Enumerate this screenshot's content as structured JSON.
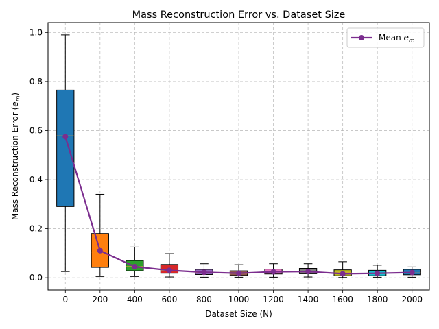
{
  "chart_data": {
    "type": "box",
    "title": "Mass Reconstruction Error vs. Dataset Size",
    "xlabel": "Dataset Size (N)",
    "ylabel": "Mass Reconstruction Error (e_m)",
    "ylim": [
      -0.05,
      1.04
    ],
    "yticks": [
      "0.0",
      "0.2",
      "0.4",
      "0.6",
      "0.8",
      "1.0"
    ],
    "grid": true,
    "legend": {
      "placement": "top-right",
      "entries": [
        {
          "label": "Mean e_m",
          "color": "#7b2d8e"
        }
      ]
    },
    "categories": [
      "0",
      "200",
      "400",
      "600",
      "800",
      "1000",
      "1200",
      "1400",
      "1600",
      "1800",
      "2000"
    ],
    "boxes": [
      {
        "x": 0,
        "whislo": 0.025,
        "q1": 0.29,
        "med": 0.578,
        "q3": 0.765,
        "whishi": 0.99,
        "color": "#1f77b4"
      },
      {
        "x": 200,
        "whislo": 0.005,
        "q1": 0.042,
        "med": 0.105,
        "q3": 0.18,
        "whishi": 0.34,
        "color": "#ff7f0e"
      },
      {
        "x": 400,
        "whislo": 0.005,
        "q1": 0.028,
        "med": 0.045,
        "q3": 0.07,
        "whishi": 0.125,
        "color": "#2ca02c"
      },
      {
        "x": 600,
        "whislo": 0.003,
        "q1": 0.018,
        "med": 0.028,
        "q3": 0.054,
        "whishi": 0.098,
        "color": "#d62728"
      },
      {
        "x": 800,
        "whislo": 0.002,
        "q1": 0.013,
        "med": 0.022,
        "q3": 0.034,
        "whishi": 0.057,
        "color": "#9467bd"
      },
      {
        "x": 1000,
        "whislo": 0.002,
        "q1": 0.009,
        "med": 0.017,
        "q3": 0.028,
        "whishi": 0.053,
        "color": "#8c564b"
      },
      {
        "x": 1200,
        "whislo": 0.002,
        "q1": 0.015,
        "med": 0.023,
        "q3": 0.035,
        "whishi": 0.057,
        "color": "#e377c2"
      },
      {
        "x": 1400,
        "whislo": 0.003,
        "q1": 0.016,
        "med": 0.024,
        "q3": 0.038,
        "whishi": 0.057,
        "color": "#7f7f7f"
      },
      {
        "x": 1600,
        "whislo": 0.001,
        "q1": 0.008,
        "med": 0.02,
        "q3": 0.032,
        "whishi": 0.065,
        "color": "#bcbd22"
      },
      {
        "x": 1800,
        "whislo": 0.002,
        "q1": 0.008,
        "med": 0.017,
        "q3": 0.03,
        "whishi": 0.051,
        "color": "#17becf"
      },
      {
        "x": 2000,
        "whislo": 0.002,
        "q1": 0.012,
        "med": 0.019,
        "q3": 0.034,
        "whishi": 0.044,
        "color": "#1f77b4"
      }
    ],
    "series": [
      {
        "name": "Mean e_m",
        "color": "#7b2d8e",
        "x": [
          0,
          200,
          400,
          600,
          800,
          1000,
          1200,
          1400,
          1600,
          1800,
          2000
        ],
        "values": [
          0.575,
          0.11,
          0.045,
          0.03,
          0.022,
          0.018,
          0.024,
          0.025,
          0.016,
          0.018,
          0.021
        ]
      }
    ]
  }
}
